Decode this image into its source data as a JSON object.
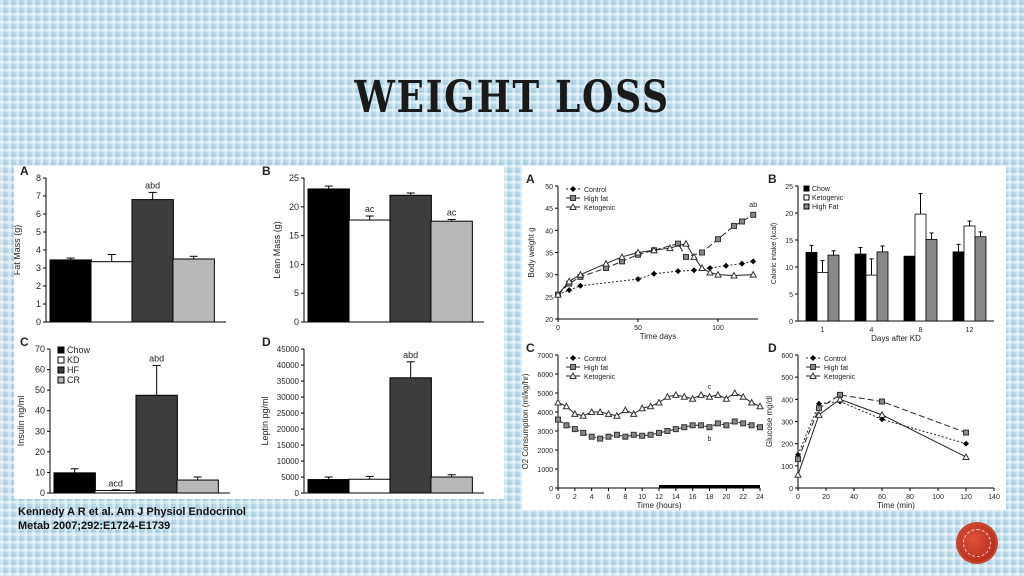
{
  "page": {
    "title": "WEIGHT LOSS",
    "citation_line1": "Kennedy A R et al. Am J Physiol Endocrinol",
    "citation_line2": "Metab 2007;292:E1724-E1739"
  },
  "chart_data": [
    {
      "id": "left-A",
      "panel_label": "A",
      "type": "bar",
      "ylabel": "Fat Mass (g)",
      "xlabel": "",
      "ylim": [
        0,
        8
      ],
      "yticks": [
        0,
        1,
        2,
        3,
        4,
        5,
        6,
        7,
        8
      ],
      "categories": [
        "Chow",
        "KD",
        "HF",
        "CR"
      ],
      "values": [
        3.45,
        3.35,
        6.8,
        3.5
      ],
      "errors": [
        0.1,
        0.4,
        0.4,
        0.15
      ],
      "annotations": [
        {
          "category": "HF",
          "text": "abd"
        }
      ]
    },
    {
      "id": "left-B",
      "panel_label": "B",
      "type": "bar",
      "ylabel": "Lean Mass (g)",
      "xlabel": "",
      "ylim": [
        0,
        25
      ],
      "yticks": [
        0,
        5,
        10,
        15,
        20,
        25
      ],
      "categories": [
        "Chow",
        "KD",
        "HF",
        "CR"
      ],
      "values": [
        23.1,
        17.7,
        22.0,
        17.5
      ],
      "errors": [
        0.5,
        0.7,
        0.4,
        0.3
      ],
      "annotations": [
        {
          "category": "KD",
          "text": "ac"
        },
        {
          "category": "CR",
          "text": "ac"
        }
      ]
    },
    {
      "id": "left-C",
      "panel_label": "C",
      "type": "bar",
      "ylabel": "Insulin ng/ml",
      "xlabel": "",
      "ylim": [
        0,
        70
      ],
      "yticks": [
        0,
        10,
        20,
        30,
        40,
        50,
        60,
        70
      ],
      "categories": [
        "Chow",
        "KD",
        "HF",
        "CR"
      ],
      "values": [
        9.8,
        1.2,
        47.5,
        6.3
      ],
      "errors": [
        2.0,
        0.3,
        14.5,
        1.5
      ],
      "annotations": [
        {
          "category": "HF",
          "text": "abd"
        },
        {
          "category": "KD",
          "text": "acd"
        }
      ],
      "legend": [
        "Chow",
        "KD",
        "HF",
        "CR"
      ]
    },
    {
      "id": "left-D",
      "panel_label": "D",
      "type": "bar",
      "ylabel": "Leptin pg/ml",
      "xlabel": "",
      "ylim": [
        0,
        45000
      ],
      "yticks": [
        0,
        5000,
        10000,
        15000,
        20000,
        25000,
        30000,
        35000,
        40000,
        45000
      ],
      "categories": [
        "Chow",
        "KD",
        "HF",
        "CR"
      ],
      "values": [
        4200,
        4300,
        36000,
        5000
      ],
      "errors": [
        800,
        900,
        5000,
        700
      ],
      "annotations": [
        {
          "category": "HF",
          "text": "abd"
        }
      ]
    },
    {
      "id": "right-A",
      "panel_label": "A",
      "type": "line",
      "xlabel": "Time days",
      "ylabel": "Body weight g",
      "xlim": [
        0,
        125
      ],
      "ylim": [
        20,
        50
      ],
      "xticks": [
        0,
        50,
        100
      ],
      "yticks": [
        20,
        25,
        30,
        35,
        40,
        45,
        50
      ],
      "series": [
        {
          "name": "Control",
          "x": [
            0,
            7,
            14,
            50,
            60,
            75,
            85,
            95,
            105,
            115,
            122
          ],
          "y": [
            25.5,
            26.5,
            27.5,
            29.0,
            30.2,
            30.8,
            31.0,
            31.5,
            32.0,
            32.5,
            33.0
          ]
        },
        {
          "name": "High fat",
          "x": [
            0,
            7,
            14,
            30,
            40,
            50,
            60,
            75,
            80,
            90,
            100,
            110,
            115,
            122
          ],
          "y": [
            25.5,
            28.0,
            29.5,
            31.5,
            33.0,
            34.5,
            35.5,
            37.0,
            34.0,
            35.0,
            38.0,
            41.0,
            42.0,
            43.5
          ]
        },
        {
          "name": "Ketogenic",
          "x": [
            0,
            7,
            14,
            30,
            40,
            50,
            60,
            70,
            80,
            85,
            90,
            95,
            100,
            110,
            122
          ],
          "y": [
            25.5,
            28.5,
            30.0,
            32.5,
            34.0,
            35.0,
            35.5,
            36.0,
            37.0,
            34.0,
            31.5,
            30.5,
            30.0,
            29.8,
            30.0
          ]
        }
      ],
      "annotations": [
        {
          "text": "ab",
          "series": "High fat"
        }
      ]
    },
    {
      "id": "right-B",
      "panel_label": "B",
      "type": "bar",
      "xlabel": "Days after KD",
      "ylabel": "Caloric intake (kcal)",
      "ylim": [
        0,
        25
      ],
      "yticks": [
        0,
        5,
        10,
        15,
        20,
        25
      ],
      "categories": [
        "1",
        "4",
        "8",
        "12"
      ],
      "series": [
        {
          "name": "Chow",
          "values": [
            12.7,
            12.4,
            12.0,
            12.8
          ],
          "errors": [
            1.3,
            1.2,
            0,
            1.4
          ]
        },
        {
          "name": "Ketogenic",
          "values": [
            9.0,
            8.5,
            19.8,
            17.6
          ],
          "errors": [
            2.2,
            3.0,
            3.8,
            0.9
          ]
        },
        {
          "name": "High Fat",
          "values": [
            12.2,
            12.8,
            15.1,
            15.6
          ],
          "errors": [
            0.8,
            1.1,
            1.2,
            0.9
          ]
        }
      ]
    },
    {
      "id": "right-C",
      "panel_label": "C",
      "type": "line",
      "xlabel": "Time (hours)",
      "ylabel": "O2 Consumption (ml/kg/hr)",
      "xlim": [
        0,
        24
      ],
      "ylim": [
        0,
        7000
      ],
      "xticks": [
        0,
        2,
        4,
        6,
        8,
        10,
        12,
        14,
        16,
        18,
        20,
        22,
        24
      ],
      "yticks": [
        0,
        1000,
        2000,
        3000,
        4000,
        5000,
        6000,
        7000
      ],
      "series": [
        {
          "name": "Control",
          "x": [],
          "y": []
        },
        {
          "name": "High fat",
          "x": [
            0,
            1,
            2,
            3,
            4,
            5,
            6,
            7,
            8,
            9,
            10,
            11,
            12,
            13,
            14,
            15,
            16,
            17,
            18,
            19,
            20,
            21,
            22,
            23,
            24
          ],
          "y": [
            3600,
            3300,
            3100,
            2900,
            2700,
            2600,
            2700,
            2800,
            2700,
            2800,
            2750,
            2800,
            2900,
            3000,
            3100,
            3200,
            3300,
            3300,
            3200,
            3400,
            3300,
            3500,
            3400,
            3300,
            3200
          ]
        },
        {
          "name": "Ketogenic",
          "x": [
            0,
            1,
            2,
            3,
            4,
            5,
            6,
            7,
            8,
            9,
            10,
            11,
            12,
            13,
            14,
            15,
            16,
            17,
            18,
            19,
            20,
            21,
            22,
            23,
            24
          ],
          "y": [
            4500,
            4300,
            3900,
            3800,
            4000,
            4000,
            3900,
            3800,
            4100,
            3900,
            4200,
            4300,
            4500,
            4800,
            4900,
            4800,
            4700,
            4900,
            4800,
            4900,
            4700,
            5000,
            4800,
            4500,
            4300
          ]
        }
      ],
      "annotations": [
        {
          "text": "c",
          "series": "Ketogenic"
        },
        {
          "text": "b",
          "series": "High fat"
        }
      ],
      "dark_period": [
        12,
        24
      ]
    },
    {
      "id": "right-D",
      "panel_label": "D",
      "type": "line",
      "xlabel": "Time (min)",
      "ylabel": "Glucose mg/dl",
      "xlim": [
        0,
        140
      ],
      "ylim": [
        0,
        600
      ],
      "xticks": [
        0,
        20,
        40,
        60,
        80,
        100,
        120,
        140
      ],
      "yticks": [
        0,
        100,
        200,
        300,
        400,
        500,
        600
      ],
      "series": [
        {
          "name": "Control",
          "x": [
            0,
            15,
            30,
            60,
            120
          ],
          "y": [
            150,
            380,
            390,
            310,
            200
          ]
        },
        {
          "name": "High fat",
          "x": [
            0,
            15,
            30,
            60,
            120
          ],
          "y": [
            130,
            360,
            420,
            390,
            250
          ]
        },
        {
          "name": "Ketogenic",
          "x": [
            0,
            15,
            30,
            60,
            120
          ],
          "y": [
            60,
            330,
            400,
            330,
            140
          ]
        }
      ]
    }
  ],
  "colors": {
    "Chow": "#000000",
    "KD": "#ffffff",
    "HF": "#3d3d3d",
    "CR": "#b8b8b8",
    "HighFatRight": "#888888"
  }
}
